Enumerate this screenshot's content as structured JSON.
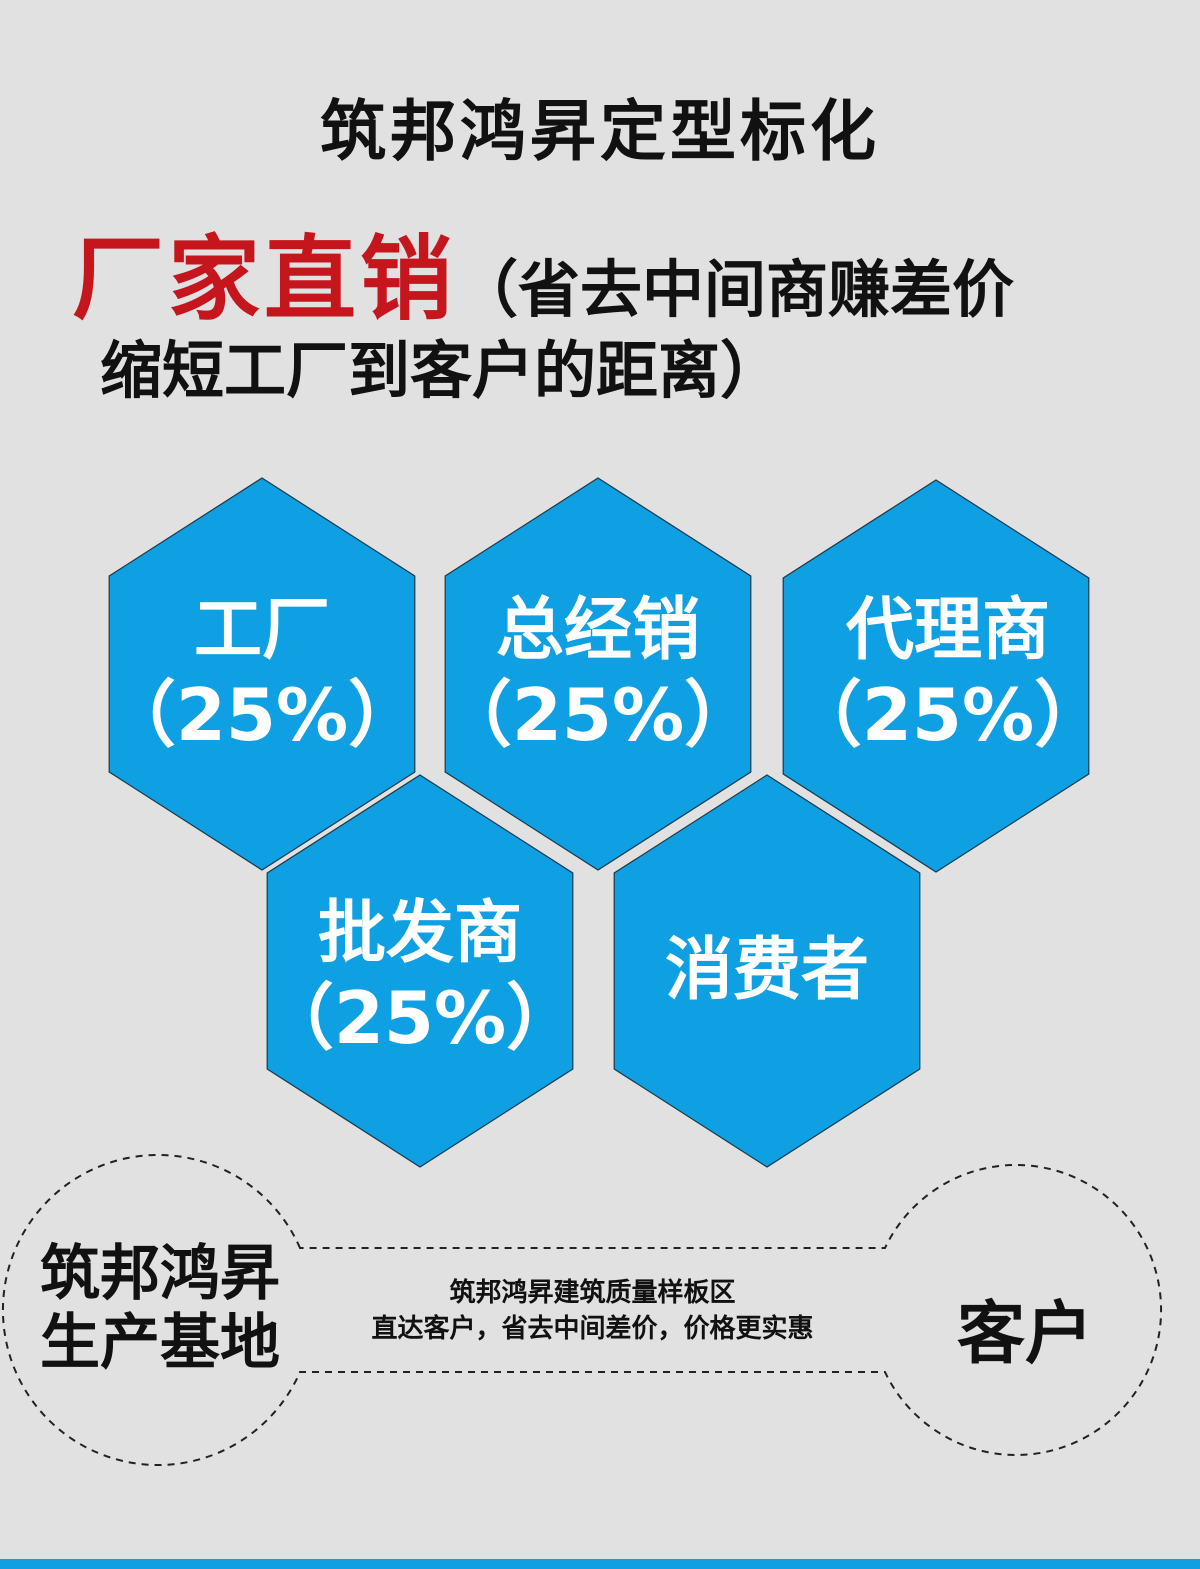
{
  "title": "筑邦鸿昇定型标化",
  "headline": {
    "red": "厂家直销",
    "rest": "（省去中间商赚差价",
    "line2": "缩短工厂到客户的距离）"
  },
  "colors": {
    "hex_fill": "#0ea0e3",
    "accent_red": "#c4161c",
    "background": "#e1e1e1"
  },
  "hexagons": [
    {
      "name": "工厂",
      "pct": "（25%）"
    },
    {
      "name": "总经销",
      "pct": "（25%）"
    },
    {
      "name": "代理商",
      "pct": "（25%）"
    },
    {
      "name": "批发商",
      "pct": "（25%）"
    },
    {
      "name": "消费者"
    }
  ],
  "bottom": {
    "left": [
      "筑邦鸿昇",
      "生产基地"
    ],
    "middle": [
      "筑邦鸿昇建筑质量样板区",
      "直达客户，省去中间差价，价格更实惠"
    ],
    "right": "客户"
  }
}
